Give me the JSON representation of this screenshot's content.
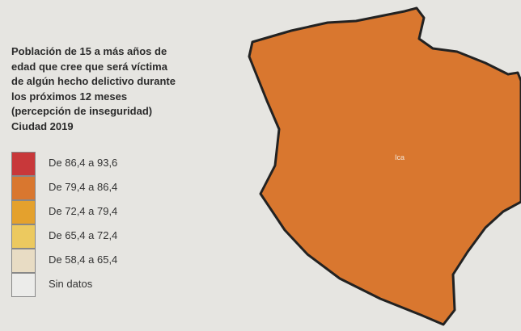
{
  "legend": {
    "title": [
      "Población de 15 a más años de",
      "edad que cree que será víctima",
      "de algún hecho delictivo durante",
      "los próximos 12 meses",
      "(percepción de inseguridad)",
      "Ciudad 2019"
    ],
    "items": [
      {
        "label": "De 86,4 a 93,6",
        "color": "#c8383a"
      },
      {
        "label": "De 79,4 a 86,4",
        "color": "#d9772f"
      },
      {
        "label": "De 72,4 a 79,4",
        "color": "#e4a12d"
      },
      {
        "label": "De 65,4 a 72,4",
        "color": "#ecc95f"
      },
      {
        "label": "De 58,4 a 65,4",
        "color": "#e8dcc4"
      },
      {
        "label": "Sin datos",
        "color": "#ececea"
      }
    ]
  },
  "region": {
    "label": "Ica",
    "color": "#d9772f"
  }
}
